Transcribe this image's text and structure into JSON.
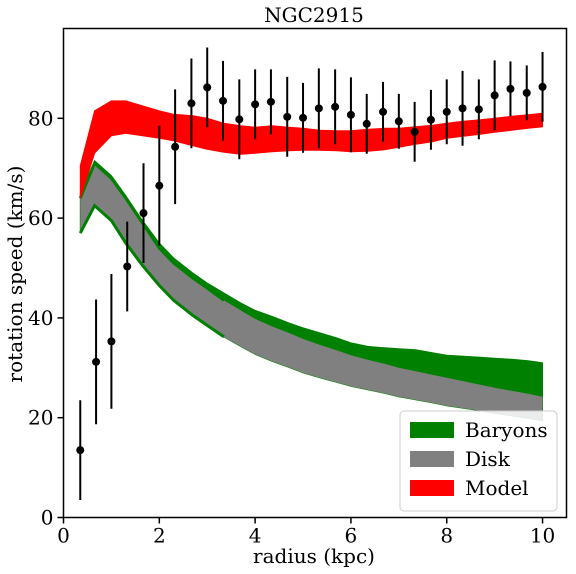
{
  "chart_data": {
    "type": "line",
    "title": "NGC2915",
    "xlabel": "radius (kpc)",
    "ylabel": "rotation speed (km/s)",
    "xlim": [
      0,
      10.5
    ],
    "ylim": [
      0,
      98
    ],
    "xticks": [
      0,
      2,
      4,
      6,
      8,
      10
    ],
    "yticks": [
      0,
      20,
      40,
      60,
      80
    ],
    "grid": false,
    "legend": {
      "placement": "lower-right"
    },
    "bands": [
      {
        "name": "Disk",
        "color": "#808080",
        "x": [
          0.35,
          0.65,
          1.0,
          1.3,
          1.65,
          2.0,
          2.3,
          2.7,
          3.0,
          3.35,
          3.7,
          4.0,
          4.35,
          4.7,
          5.0,
          5.35,
          5.7,
          6.0,
          6.35,
          6.7,
          7.0,
          7.35,
          7.7,
          8.0,
          8.35,
          8.7,
          9.0,
          9.35,
          9.7,
          10.0
        ],
        "upper": [
          64.0,
          71.0,
          68.0,
          64.0,
          59.0,
          54.0,
          51.0,
          48.0,
          46.0,
          43.5,
          41.5,
          39.8,
          38.3,
          37.0,
          35.8,
          34.6,
          33.5,
          32.5,
          31.6,
          30.8,
          30.0,
          29.3,
          28.6,
          28.0,
          27.3,
          26.6,
          26.0,
          25.4,
          24.8,
          24.2
        ],
        "lower": [
          57.0,
          62.5,
          59.5,
          55.0,
          50.5,
          46.5,
          43.5,
          40.5,
          38.5,
          36.2,
          34.3,
          32.7,
          31.3,
          30.1,
          29.0,
          28.0,
          27.1,
          26.3,
          25.6,
          24.9,
          24.2,
          23.6,
          23.0,
          22.4,
          21.9,
          21.4,
          20.9,
          20.4,
          19.9,
          19.4
        ]
      },
      {
        "name": "Baryons",
        "color": "#008000",
        "x": [
          0.35,
          0.65,
          1.0,
          1.3,
          1.65,
          2.0,
          2.3,
          2.7,
          3.0,
          3.35,
          3.7,
          4.0,
          4.35,
          4.7,
          5.0,
          5.35,
          5.7,
          6.0,
          6.35,
          6.7,
          7.0,
          7.35,
          7.7,
          8.0,
          8.35,
          8.7,
          9.0,
          9.35,
          9.7,
          10.0
        ],
        "upper": [
          65.0,
          71.5,
          68.5,
          64.5,
          59.5,
          55.0,
          52.0,
          49.0,
          47.0,
          45.0,
          43.0,
          41.5,
          40.3,
          39.0,
          38.0,
          37.0,
          36.0,
          35.0,
          34.3,
          34.0,
          33.8,
          33.6,
          33.0,
          32.5,
          32.3,
          32.1,
          31.9,
          31.7,
          31.4,
          31.0
        ]
      },
      {
        "name": "Model",
        "color": "#ff0000",
        "x": [
          0.35,
          0.65,
          1.0,
          1.3,
          1.65,
          2.0,
          2.3,
          2.7,
          3.0,
          3.35,
          3.7,
          4.0,
          4.35,
          4.7,
          5.0,
          5.35,
          5.7,
          6.0,
          6.35,
          6.7,
          7.0,
          7.35,
          7.7,
          8.0,
          8.35,
          8.7,
          9.0,
          9.35,
          9.7,
          10.0
        ],
        "upper": [
          70.5,
          81.5,
          83.5,
          83.5,
          82.5,
          81.5,
          80.8,
          80.5,
          80.0,
          79.0,
          78.5,
          78.2,
          78.5,
          78.2,
          78.0,
          77.6,
          77.5,
          77.5,
          77.8,
          78.0,
          78.0,
          78.3,
          78.6,
          79.0,
          79.4,
          79.7,
          80.0,
          80.4,
          80.7,
          81.0
        ],
        "lower": [
          64.0,
          73.0,
          76.5,
          77.0,
          76.5,
          76.0,
          75.5,
          74.5,
          73.8,
          73.2,
          72.8,
          73.0,
          73.3,
          73.5,
          73.6,
          73.6,
          73.5,
          73.3,
          73.4,
          73.7,
          74.2,
          74.8,
          75.3,
          76.0,
          76.4,
          76.8,
          77.2,
          77.6,
          78.0,
          78.3
        ]
      }
    ],
    "points": {
      "name": "data",
      "color": "#000000",
      "x": [
        0.35,
        0.68,
        1.0,
        1.33,
        1.67,
        2.0,
        2.33,
        2.67,
        3.0,
        3.33,
        3.67,
        4.0,
        4.33,
        4.67,
        5.0,
        5.33,
        5.67,
        6.0,
        6.33,
        6.67,
        7.0,
        7.33,
        7.67,
        8.0,
        8.33,
        8.67,
        9.0,
        9.33,
        9.67,
        10.0
      ],
      "y": [
        13.5,
        31.2,
        35.3,
        50.3,
        61.0,
        66.5,
        74.3,
        83.0,
        86.2,
        83.5,
        79.8,
        82.8,
        83.3,
        80.3,
        80.1,
        82.0,
        82.3,
        80.7,
        78.9,
        81.3,
        79.4,
        77.3,
        79.7,
        81.3,
        82.0,
        81.8,
        84.6,
        85.9,
        85.1,
        86.3
      ],
      "err": [
        10.0,
        12.5,
        13.5,
        9.0,
        10.0,
        12.0,
        11.5,
        9.0,
        8.0,
        8.0,
        8.0,
        7.0,
        6.5,
        8.0,
        7.0,
        8.0,
        7.5,
        7.5,
        6.0,
        6.0,
        5.5,
        6.0,
        6.0,
        6.5,
        7.5,
        6.0,
        7.0,
        5.5,
        5.5,
        7.0
      ]
    },
    "legend_entries": [
      {
        "label": "Baryons",
        "color": "#008000"
      },
      {
        "label": "Disk",
        "color": "#808080"
      },
      {
        "label": "Model",
        "color": "#ff0000"
      }
    ]
  }
}
